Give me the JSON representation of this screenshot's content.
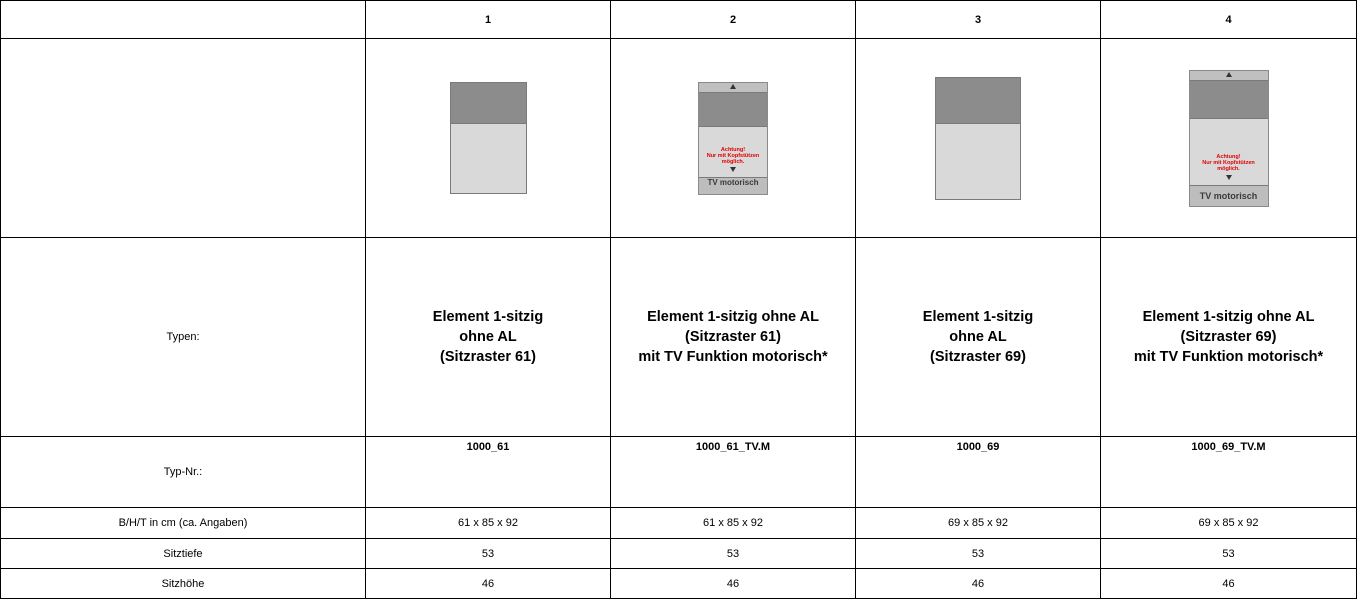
{
  "header": {
    "col1": "1",
    "col2": "2",
    "col3": "3",
    "col4": "4"
  },
  "images": {
    "tv_label": "TV motorisch",
    "warning_text": "Achtung!\nNur mit Kopfstützen\nmöglich."
  },
  "rows": {
    "typen_label": "Typen:",
    "typnr_label": "Typ-Nr.:",
    "dim_label": "B/H/T in cm (ca. Angaben)",
    "sitztiefe_label": "Sitztiefe",
    "sitzhoehe_label": "Sitzhöhe"
  },
  "columns": [
    {
      "type": "Element 1-sitzig\nohne AL\n(Sitzraster 61)",
      "typnr": "1000_61",
      "dim": "61 x 85 x 92",
      "sitztiefe": "53",
      "sitzhoehe": "46"
    },
    {
      "type": "Element 1-sitzig ohne AL\n(Sitzraster 61)\nmit TV Funktion motorisch*",
      "typnr": "1000_61_TV.M",
      "dim": "61 x 85 x 92",
      "sitztiefe": "53",
      "sitzhoehe": "46"
    },
    {
      "type": "Element 1-sitzig\nohne AL\n(Sitzraster 69)",
      "typnr": "1000_69",
      "dim": "69 x 85 x 92",
      "sitztiefe": "53",
      "sitzhoehe": "46"
    },
    {
      "type": "Element 1-sitzig ohne AL\n(Sitzraster 69)\nmit TV Funktion motorisch*",
      "typnr": "1000_69_TV.M",
      "dim": "69 x 85 x 92",
      "sitztiefe": "53",
      "sitzhoehe": "46"
    }
  ]
}
